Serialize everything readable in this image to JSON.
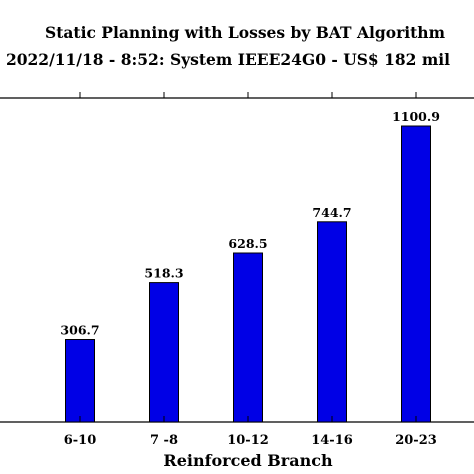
{
  "chart_data": {
    "type": "bar",
    "title": "Static Planning with Losses by BAT Algorithm",
    "subtitle": "2022/11/18 - 8:52: System IEEE24G0 - US$ 182 mil",
    "xlabel": "Reinforced Branch",
    "ylabel": "",
    "categories": [
      "6-10",
      "7 -8",
      "10-12",
      "14-16",
      "20-23"
    ],
    "values": [
      306.7,
      518.3,
      628.5,
      744.7,
      1100.9
    ],
    "data_labels": [
      "306.7",
      "518.3",
      "628.5",
      "744.7",
      "1100.9"
    ],
    "ylim": [
      0,
      1200
    ],
    "grid": false,
    "legend": "none",
    "colors": {
      "bar": "#0000e6",
      "axis": "#000000"
    }
  }
}
